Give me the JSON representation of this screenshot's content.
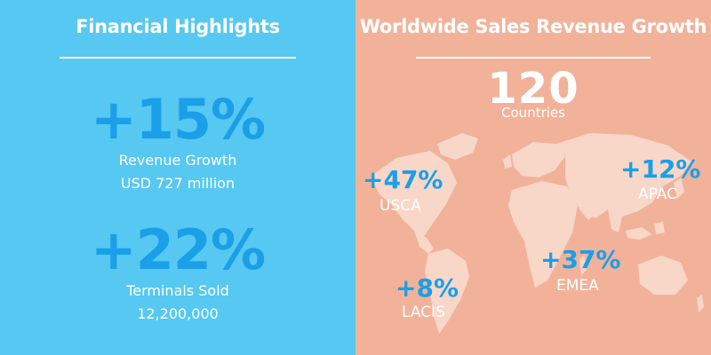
{
  "left": {
    "title": "Financial Highlights",
    "stats": [
      {
        "value": "+15%",
        "line1": "Revenue Growth",
        "line2": "USD 727 million"
      },
      {
        "value": "+22%",
        "line1": "Terminals Sold",
        "line2": "12,200,000"
      }
    ]
  },
  "right": {
    "title": "Worldwide Sales Revenue Growth",
    "countries_value": "120",
    "countries_label": "Countries",
    "regions": [
      {
        "value": "+47%",
        "label": "USCA"
      },
      {
        "value": "+12%",
        "label": "APAC"
      },
      {
        "value": "+37%",
        "label": "EMEA"
      },
      {
        "value": "+8%",
        "label": "LACIS"
      }
    ]
  },
  "colors": {
    "left_bg": "#56C8F2",
    "right_bg": "#F2B29A",
    "accent": "#1A9FE8",
    "text": "#FFFFFF",
    "map": "#F8D7C9"
  },
  "icons": {
    "map": "world-map-icon"
  }
}
